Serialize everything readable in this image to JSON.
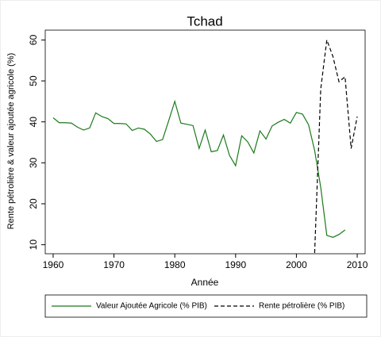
{
  "chart_data": {
    "type": "line",
    "title": "Tchad",
    "x_label": "Année",
    "y_label": "Rente pétrolière & valeur ajoutée agricole (%)",
    "x": [
      1960,
      1961,
      1962,
      1963,
      1964,
      1965,
      1966,
      1967,
      1968,
      1969,
      1970,
      1971,
      1972,
      1973,
      1974,
      1975,
      1976,
      1977,
      1978,
      1979,
      1980,
      1981,
      1982,
      1983,
      1984,
      1985,
      1986,
      1987,
      1988,
      1989,
      1990,
      1991,
      1992,
      1993,
      1994,
      1995,
      1996,
      1997,
      1998,
      1999,
      2000,
      2001,
      2002,
      2003,
      2004,
      2005,
      2006,
      2007,
      2008,
      2009,
      2010
    ],
    "series": [
      {
        "name": "Valeur Ajoutée Agricole (% PIB)",
        "color": "#1a7a1a",
        "dash": "solid",
        "values": [
          41,
          39.8,
          39.8,
          39.7,
          38.7,
          38,
          38.5,
          42.2,
          41.3,
          40.8,
          39.6,
          39.6,
          39.5,
          37.9,
          38.5,
          38.2,
          37,
          35.2,
          35.7,
          40.3,
          45,
          39.7,
          39.4,
          39.1,
          33.5,
          38,
          32.7,
          33,
          36.8,
          31.8,
          29.3,
          36.6,
          35.1,
          32.4,
          37.8,
          35.8,
          39,
          39.9,
          40.6,
          39.7,
          42.3,
          41.9,
          39.3,
          33,
          24,
          12.3,
          11.8,
          12.5,
          13.6,
          null,
          null
        ]
      },
      {
        "name": "Rente pétrolière (% PIB)",
        "color": "#000000",
        "dash": "dashed",
        "values": [
          null,
          null,
          null,
          null,
          null,
          null,
          null,
          null,
          null,
          null,
          null,
          null,
          null,
          null,
          null,
          null,
          null,
          null,
          null,
          null,
          null,
          null,
          null,
          null,
          null,
          null,
          null,
          null,
          null,
          null,
          null,
          null,
          null,
          null,
          null,
          null,
          null,
          null,
          null,
          null,
          null,
          null,
          null,
          8,
          48,
          60,
          56,
          49.8,
          51,
          33.5,
          41.3
        ]
      }
    ],
    "xlim": [
      1958.7,
      2011.3
    ],
    "xticks": [
      1960,
      1970,
      1980,
      1990,
      2000,
      2010
    ],
    "ylim": [
      7.8,
      62.4
    ],
    "yticks": [
      10,
      20,
      30,
      40,
      50,
      60
    ],
    "legend": "bottom"
  }
}
